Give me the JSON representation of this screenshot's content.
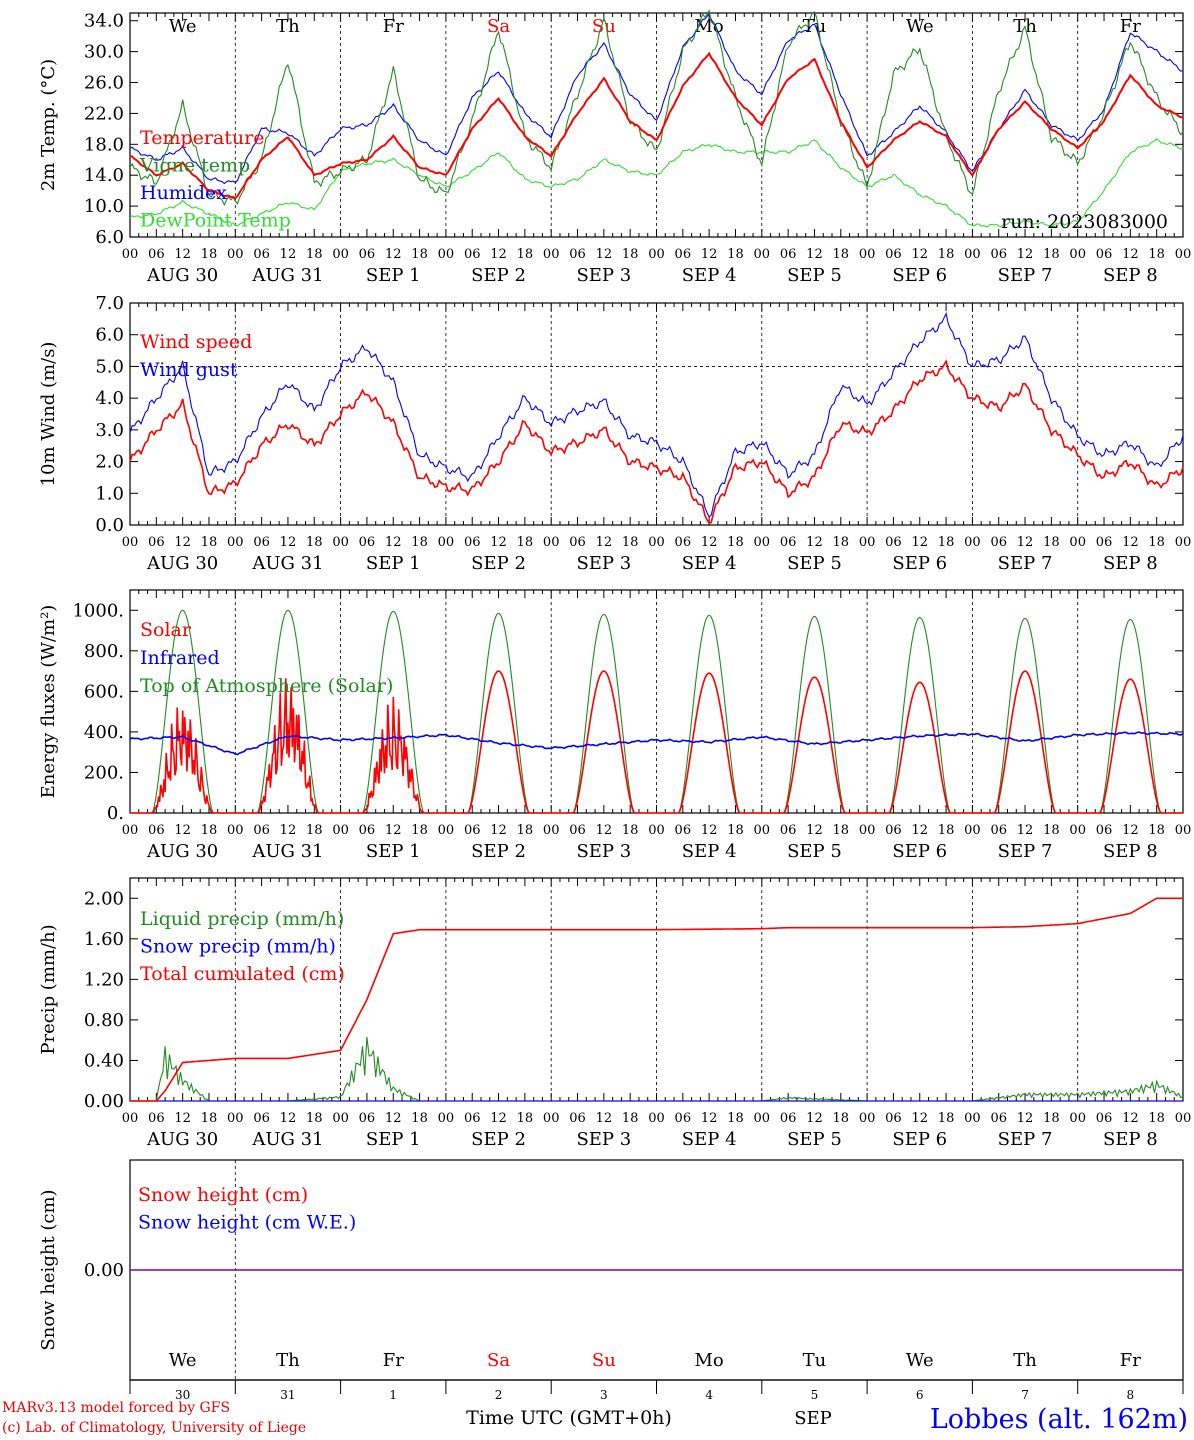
{
  "colors": {
    "red": "#ff0000",
    "green": "#228b22",
    "blue": "#0000ff",
    "lightgreen": "#33dd33",
    "purple": "#8000a0"
  },
  "day_names": [
    "We",
    "Th",
    "Fr",
    "Sa",
    "Su",
    "Mo",
    "Tu",
    "We",
    "Th",
    "Fr"
  ],
  "weekend_days": [
    3,
    4
  ],
  "date_labels": [
    "AUG 30",
    "AUG 31",
    "SEP  1",
    "SEP  2",
    "SEP  3",
    "SEP  4",
    "SEP  5",
    "SEP  6",
    "SEP  7",
    "SEP  8"
  ],
  "hour_ticks": [
    "00",
    "06",
    "12",
    "18"
  ],
  "snow_day_numbers": [
    "30",
    "31",
    "1",
    "2",
    "3",
    "4",
    "5",
    "6",
    "7",
    "8"
  ],
  "footer": {
    "credit_line1": "MARv3.13 model forced by GFS",
    "credit_line2": "(c) Lab. of Climatology, University of Liege",
    "time_label": "Time UTC (GMT+0h)",
    "month_label": "SEP",
    "station": "Lobbes (alt. 162m)"
  },
  "chart_data": [
    {
      "id": "temp",
      "type": "line",
      "ylabel": "2m Temp. (°C)",
      "ylim": [
        6.0,
        35.0
      ],
      "yticks": [
        6.0,
        10.0,
        14.0,
        18.0,
        22.0,
        26.0,
        30.0,
        34.0
      ],
      "annotation": "run: 2023083000",
      "x_hours": [
        0,
        6,
        12,
        18,
        24,
        30,
        36,
        42,
        48,
        54,
        60,
        66,
        72,
        78,
        84,
        90,
        96,
        102,
        108,
        114,
        120,
        126,
        132,
        138,
        144,
        150,
        156,
        162,
        168,
        174,
        180,
        186,
        192,
        198,
        204,
        210,
        216,
        222,
        228,
        234,
        240
      ],
      "series": [
        {
          "name": "Temperature",
          "color": "red",
          "values": [
            16.5,
            14.0,
            15.5,
            12.0,
            11.0,
            16.0,
            19.0,
            14.0,
            15.5,
            16.0,
            19.0,
            15.0,
            14.0,
            20.0,
            24.0,
            19.0,
            16.5,
            22.0,
            26.5,
            21.0,
            18.5,
            25.5,
            29.8,
            24.0,
            20.5,
            26.5,
            29.0,
            21.0,
            15.0,
            18.5,
            21.0,
            19.0,
            14.0,
            20.0,
            23.5,
            20.0,
            17.5,
            21.0,
            27.0,
            23.0,
            21.5
          ]
        },
        {
          "name": "Vigne temp",
          "color": "green",
          "values": [
            15.0,
            13.0,
            23.0,
            11.5,
            10.5,
            16.0,
            29.0,
            13.0,
            14.5,
            16.0,
            27.5,
            13.5,
            11.5,
            21.0,
            33.0,
            19.0,
            15.0,
            24.5,
            34.0,
            21.0,
            17.0,
            30.0,
            35.5,
            24.0,
            15.5,
            31.0,
            35.0,
            21.0,
            12.5,
            27.0,
            30.5,
            19.0,
            11.5,
            25.0,
            33.0,
            19.0,
            15.5,
            22.0,
            31.5,
            24.0,
            19.5
          ]
        },
        {
          "name": "Humidex",
          "color": "blue",
          "values": [
            17.5,
            16.0,
            17.5,
            13.5,
            13.0,
            20.0,
            19.5,
            16.5,
            20.0,
            20.5,
            23.0,
            18.5,
            16.5,
            24.0,
            27.5,
            22.0,
            19.0,
            27.0,
            31.0,
            24.5,
            21.0,
            30.5,
            35.0,
            27.5,
            24.5,
            31.5,
            33.5,
            24.5,
            16.5,
            19.5,
            23.0,
            19.5,
            14.5,
            20.0,
            25.0,
            20.5,
            18.5,
            22.5,
            32.5,
            30.0,
            27.5
          ]
        },
        {
          "name": "DewPoint Temp",
          "color": "lightgreen",
          "values": [
            8.5,
            9.0,
            10.5,
            9.0,
            7.5,
            9.0,
            10.5,
            9.5,
            14.5,
            15.5,
            16.0,
            14.0,
            12.5,
            14.5,
            17.0,
            13.5,
            12.5,
            13.5,
            16.0,
            14.5,
            14.0,
            17.0,
            18.0,
            17.0,
            17.0,
            17.0,
            18.5,
            15.0,
            12.5,
            14.0,
            11.5,
            10.0,
            7.5,
            7.5,
            8.0,
            7.5,
            8.0,
            12.0,
            17.0,
            18.5,
            17.5
          ]
        }
      ]
    },
    {
      "id": "wind",
      "type": "line",
      "ylabel": "10m Wind (m/s)",
      "ylim": [
        0.0,
        7.0
      ],
      "yticks": [
        0.0,
        1.0,
        2.0,
        3.0,
        4.0,
        5.0,
        6.0,
        7.0
      ],
      "x_hours": [
        0,
        6,
        12,
        18,
        24,
        30,
        36,
        42,
        48,
        54,
        60,
        66,
        72,
        78,
        84,
        90,
        96,
        102,
        108,
        114,
        120,
        126,
        132,
        138,
        144,
        150,
        156,
        162,
        168,
        174,
        180,
        186,
        192,
        198,
        204,
        210,
        216,
        222,
        228,
        234,
        240
      ],
      "series": [
        {
          "name": "Wind speed",
          "color": "red",
          "values": [
            2.0,
            3.0,
            3.8,
            1.0,
            1.3,
            2.5,
            3.2,
            2.5,
            3.5,
            4.2,
            3.2,
            1.5,
            1.2,
            1.1,
            2.0,
            3.2,
            2.3,
            2.6,
            3.0,
            2.0,
            1.8,
            1.5,
            0.1,
            1.8,
            2.0,
            1.0,
            1.5,
            3.2,
            2.9,
            3.6,
            4.6,
            5.0,
            4.0,
            3.7,
            4.4,
            3.0,
            2.2,
            1.5,
            2.0,
            1.2,
            1.8
          ]
        },
        {
          "name": "Wind gust",
          "color": "blue",
          "values": [
            2.9,
            4.0,
            5.0,
            1.6,
            2.0,
            3.4,
            4.5,
            3.6,
            5.0,
            5.6,
            4.5,
            2.2,
            1.8,
            1.5,
            2.8,
            4.0,
            3.2,
            3.6,
            3.9,
            2.8,
            2.6,
            2.0,
            0.3,
            2.3,
            2.6,
            1.6,
            2.2,
            4.4,
            3.8,
            4.8,
            5.8,
            6.5,
            5.0,
            5.2,
            5.9,
            4.0,
            2.8,
            2.2,
            2.6,
            1.8,
            2.8
          ]
        }
      ]
    },
    {
      "id": "flux",
      "type": "line",
      "ylabel": "Energy fluxes (W/m²)",
      "ylim": [
        0,
        1100
      ],
      "yticks": [
        0,
        200,
        400,
        600,
        800,
        1000
      ],
      "ytick_labels": [
        "0.",
        "200.",
        "400.",
        "600.",
        "800.",
        "1000."
      ],
      "daily_peak_hour": 12,
      "series": [
        {
          "name": "Solar",
          "color": "red",
          "daily_peak": [
            590,
            710,
            600,
            700,
            700,
            690,
            670,
            645,
            700,
            660
          ]
        },
        {
          "name": "Infrared",
          "color": "blue",
          "hourly_every12": [
            365,
            375,
            290,
            380,
            360,
            370,
            385,
            345,
            320,
            340,
            360,
            350,
            375,
            340,
            360,
            380,
            390,
            355,
            385,
            395,
            390
          ]
        },
        {
          "name": "Top of Atmosphere (Solar)",
          "color": "green",
          "daily_peak": [
            1000,
            1000,
            995,
            985,
            980,
            975,
            970,
            965,
            960,
            955
          ]
        }
      ]
    },
    {
      "id": "precip",
      "type": "line",
      "ylabel": "Precip (mm/h)",
      "ylim": [
        0.0,
        2.2
      ],
      "yticks": [
        0.0,
        0.4,
        0.8,
        1.2,
        1.6,
        2.0
      ],
      "ytick_labels": [
        "0.00",
        "0.40",
        "0.80",
        "1.20",
        "1.60",
        "2.00"
      ],
      "x_hours": [
        0,
        6,
        8,
        12,
        18,
        24,
        30,
        36,
        48,
        54,
        60,
        66,
        72,
        96,
        120,
        144,
        150,
        168,
        192,
        204,
        216,
        222,
        228,
        234,
        240
      ],
      "series": [
        {
          "name": "Liquid precip (mm/h)",
          "color": "green",
          "values": [
            0.0,
            0.0,
            0.55,
            0.25,
            0.0,
            0.0,
            0.0,
            0.0,
            0.05,
            0.65,
            0.15,
            0.0,
            0.0,
            0.0,
            0.0,
            0.0,
            0.04,
            0.0,
            0.0,
            0.08,
            0.08,
            0.1,
            0.12,
            0.2,
            0.05
          ]
        },
        {
          "name": "Snow precip (mm/h)",
          "color": "blue",
          "values": [
            0.0,
            0.0,
            0.0,
            0.0,
            0.0,
            0.0,
            0.0,
            0.0,
            0.0,
            0.0,
            0.0,
            0.0,
            0.0,
            0.0,
            0.0,
            0.0,
            0.0,
            0.0,
            0.0,
            0.0,
            0.0,
            0.0,
            0.0,
            0.0,
            0.0
          ]
        },
        {
          "name": "Total cumulated (cm)",
          "color": "red",
          "values": [
            0.0,
            0.0,
            0.1,
            0.38,
            0.4,
            0.42,
            0.42,
            0.42,
            0.5,
            1.0,
            1.65,
            1.69,
            1.69,
            1.69,
            1.69,
            1.7,
            1.71,
            1.71,
            1.71,
            1.72,
            1.75,
            1.8,
            1.85,
            2.0,
            2.0
          ]
        }
      ]
    },
    {
      "id": "snow",
      "type": "line",
      "ylabel": "Snow height (cm)",
      "ylim": [
        -1.0,
        1.0
      ],
      "yticks": [
        0.0
      ],
      "ytick_labels": [
        "0.00"
      ],
      "series": [
        {
          "name": "Snow height (cm)",
          "color": "red",
          "values": [
            0.0,
            0.0
          ]
        },
        {
          "name": "Snow height (cm W.E.)",
          "color": "blue",
          "values": [
            0.0,
            0.0
          ]
        }
      ]
    }
  ]
}
